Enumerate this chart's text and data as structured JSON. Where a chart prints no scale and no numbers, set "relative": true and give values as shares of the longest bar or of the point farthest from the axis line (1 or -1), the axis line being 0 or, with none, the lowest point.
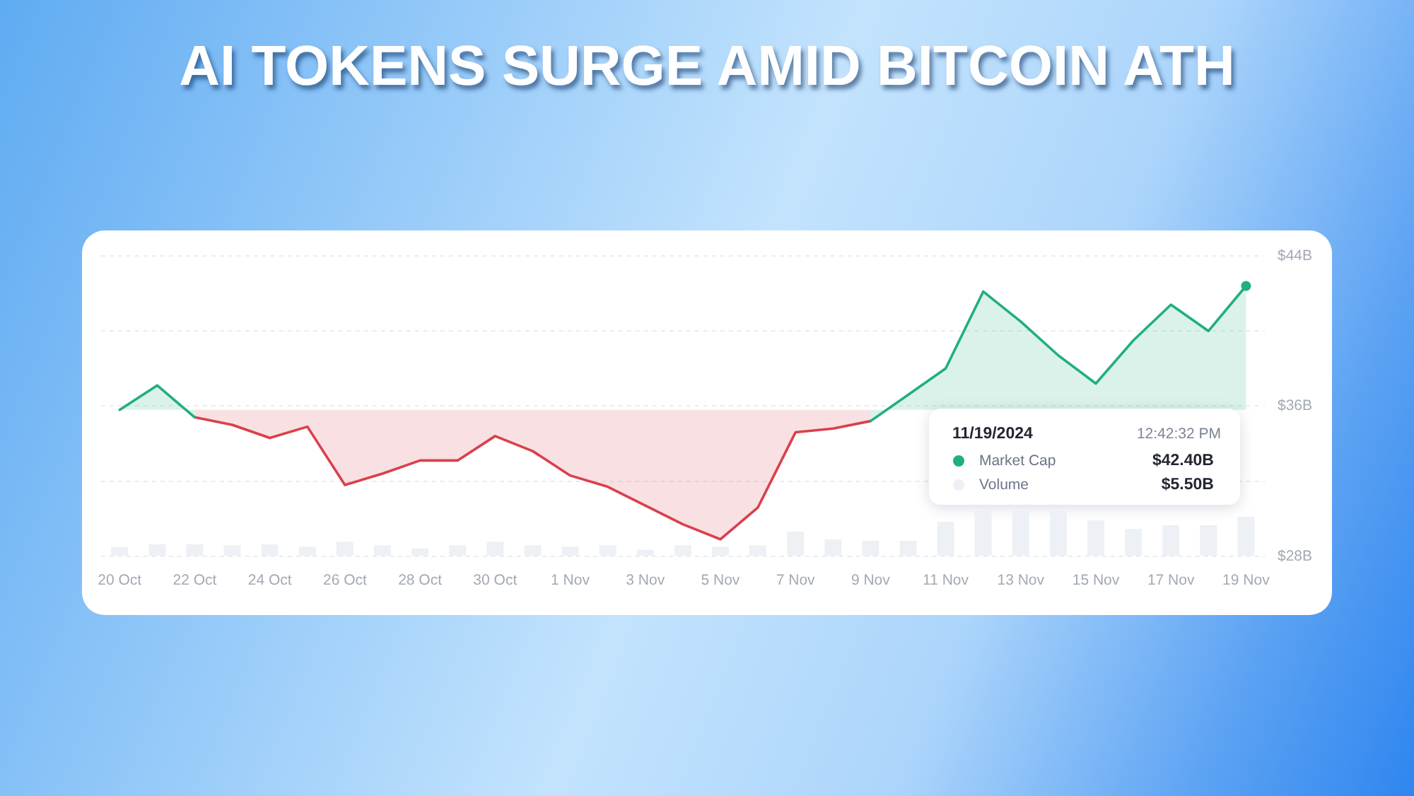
{
  "chart_data": [
    {
      "type": "line",
      "title": "AI TOKENS SURGE AMID BITCOIN ATH",
      "categories": [
        "20 Oct",
        null,
        "22 Oct",
        null,
        "24 Oct",
        null,
        "26 Oct",
        null,
        "28 Oct",
        null,
        "30 Oct",
        null,
        "1 Nov",
        null,
        "3 Nov",
        null,
        "5 Nov",
        null,
        "7 Nov",
        null,
        "9 Nov",
        null,
        "11 Nov",
        null,
        "13 Nov",
        null,
        "15 Nov",
        null,
        "17 Nov",
        null,
        "19 Nov"
      ],
      "series": [
        {
          "name": "Market Cap",
          "color": "#20b07c",
          "values": [
            35.8,
            37.1,
            35.4,
            null,
            null,
            null,
            null,
            null,
            null,
            null,
            null,
            null,
            null,
            null,
            null,
            null,
            null,
            null,
            null,
            null,
            35.2,
            36.6,
            38.0,
            42.1,
            40.5,
            38.7,
            37.2,
            39.5,
            41.4,
            40.0,
            42.4
          ],
          "lower": [
            35.8,
            35.8,
            35.8,
            null,
            null,
            null,
            null,
            null,
            null,
            null,
            null,
            null,
            null,
            null,
            null,
            null,
            null,
            null,
            null,
            null,
            35.8,
            35.8,
            35.8,
            35.8,
            35.8,
            35.8,
            35.8,
            35.8,
            35.8,
            35.8,
            35.8
          ],
          "upper": [
            35.8,
            37.1,
            35.4,
            null,
            null,
            null,
            null,
            null,
            null,
            null,
            null,
            null,
            null,
            null,
            null,
            null,
            null,
            null,
            null,
            null,
            35.2,
            36.6,
            38.0,
            42.1,
            40.5,
            38.7,
            37.2,
            39.5,
            41.4,
            40.0,
            42.4
          ]
        },
        {
          "color": "#d9404c",
          "values": [
            null,
            null,
            35.4,
            35.0,
            34.3,
            34.9,
            31.8,
            32.4,
            33.1,
            33.1,
            34.4,
            33.6,
            32.3,
            31.7,
            30.7,
            29.7,
            28.9,
            30.6,
            34.6,
            34.8,
            35.2,
            null,
            null,
            null,
            null,
            null,
            null,
            null,
            null,
            null,
            null
          ],
          "lower": [
            null,
            null,
            35.4,
            35.0,
            34.3,
            34.9,
            31.8,
            32.4,
            33.1,
            33.1,
            34.4,
            33.6,
            32.3,
            31.7,
            30.7,
            29.7,
            28.9,
            30.6,
            34.6,
            34.8,
            35.2,
            null,
            null,
            null,
            null,
            null,
            null,
            null,
            null,
            null,
            null
          ],
          "upper": [
            null,
            null,
            35.8,
            35.8,
            35.8,
            35.8,
            35.8,
            35.8,
            35.8,
            35.8,
            35.8,
            35.8,
            35.8,
            35.8,
            35.8,
            35.8,
            35.8,
            35.8,
            35.8,
            35.8,
            35.8,
            null,
            null,
            null,
            null,
            null,
            null,
            null,
            null,
            null,
            null
          ]
        }
      ],
      "ylim": [
        28,
        44
      ],
      "yticks": [
        {
          "value": 28,
          "label": "$28B"
        },
        {
          "value": 32,
          "label": null
        },
        {
          "value": 36,
          "label": "$36B"
        },
        {
          "value": 40,
          "label": null
        },
        {
          "value": 44,
          "label": "$44B"
        }
      ],
      "grid": "y",
      "legend": "right",
      "annotations": [
        "11/19/2024",
        "12:42:32 PM",
        "$42.40B"
      ]
    },
    {
      "type": "bar",
      "relative": true,
      "tick_labels": false,
      "legend": "right",
      "categories": [
        null,
        null,
        null,
        null,
        null,
        null,
        null,
        null,
        null,
        null,
        null,
        null,
        null,
        null,
        null,
        null,
        null,
        null,
        null,
        null,
        null,
        null,
        null,
        null,
        null,
        null,
        null,
        null,
        null,
        null,
        null
      ],
      "series": [
        {
          "name": "Volume",
          "color": "#edf0f4",
          "values": [
            0.19,
            0.25,
            0.25,
            0.23,
            0.25,
            0.2,
            0.31,
            0.23,
            0.16,
            0.23,
            0.31,
            0.23,
            0.2,
            0.23,
            0.13,
            0.23,
            0.2,
            0.23,
            0.53,
            0.36,
            0.33,
            0.33,
            0.75,
            1,
            1,
            1,
            0.78,
            0.59,
            0.67,
            0.67,
            0.86
          ]
        }
      ],
      "annotations": [
        "$5.50B"
      ]
    }
  ]
}
